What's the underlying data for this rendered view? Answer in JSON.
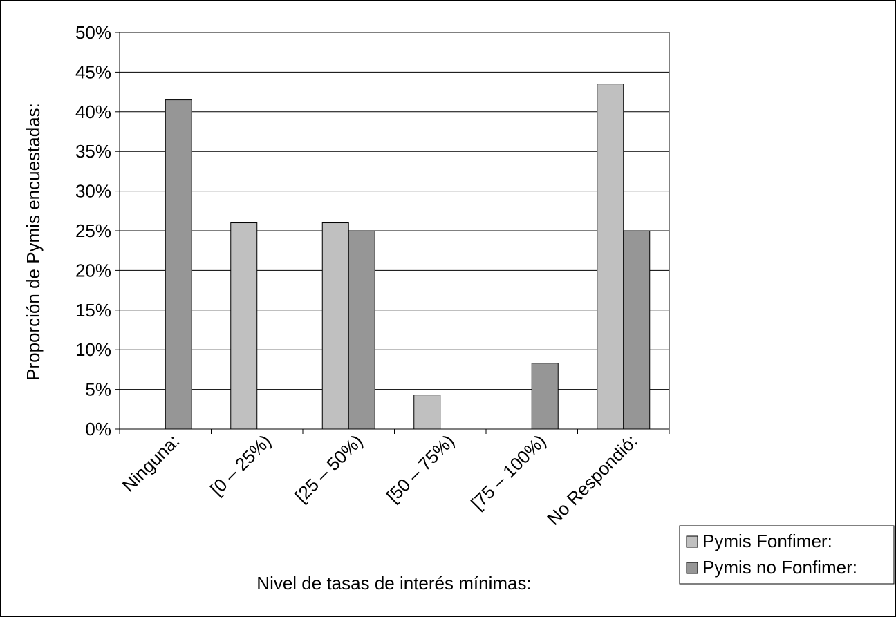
{
  "chart_data": {
    "type": "bar",
    "title": "",
    "xlabel": "Nivel de tasas de interés mínimas:",
    "ylabel": "Proporción de Pymis encuestadas:",
    "ylim": [
      0,
      0.5
    ],
    "y_ticks": [
      "0%",
      "5%",
      "10%",
      "15%",
      "20%",
      "25%",
      "30%",
      "35%",
      "40%",
      "45%",
      "50%"
    ],
    "grid": true,
    "legend_position": "bottom-right",
    "categories": [
      "Ninguna:",
      "[0 – 25%)",
      "[25 – 50%)",
      "[50 – 75%)",
      "[75 – 100%)",
      "No Respondió:"
    ],
    "series": [
      {
        "name": "Pymis Fonfimer:",
        "color": "#c0c0c0",
        "values": [
          0,
          0.26,
          0.26,
          0.043,
          0,
          0.435
        ]
      },
      {
        "name": "Pymis no Fonfimer:",
        "color": "#969696",
        "values": [
          0.415,
          0,
          0.25,
          0,
          0.083,
          0.25
        ]
      }
    ]
  }
}
